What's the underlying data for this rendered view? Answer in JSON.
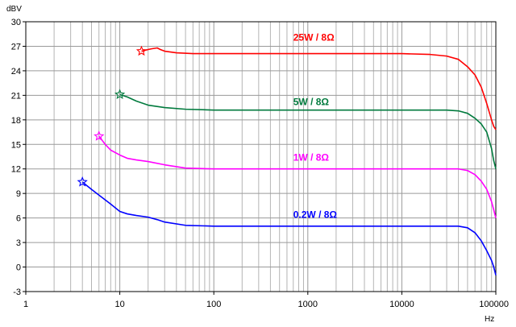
{
  "chart_data": {
    "type": "line",
    "ylabel": "dBV",
    "xlabel": "Hz",
    "x_scale": "log",
    "xlim": [
      1,
      100000
    ],
    "ylim": [
      -3,
      30
    ],
    "grid": true,
    "x_ticks": [
      "1",
      "10",
      "100",
      "1000",
      "10000",
      "100000"
    ],
    "y_ticks": [
      "-3",
      "0",
      "3",
      "6",
      "9",
      "12",
      "15",
      "18",
      "21",
      "24",
      "27",
      "30"
    ],
    "series": [
      {
        "name": "25W / 8Ω",
        "color": "#ff0000",
        "start_marker": "star",
        "points": [
          [
            17,
            26.4
          ],
          [
            20,
            26.6
          ],
          [
            22,
            26.7
          ],
          [
            25,
            26.8
          ],
          [
            27,
            26.6
          ],
          [
            30,
            26.4
          ],
          [
            40,
            26.2
          ],
          [
            60,
            26.1
          ],
          [
            100,
            26.1
          ],
          [
            1000,
            26.1
          ],
          [
            10000,
            26.1
          ],
          [
            20000,
            26.0
          ],
          [
            30000,
            25.8
          ],
          [
            40000,
            25.4
          ],
          [
            50000,
            24.5
          ],
          [
            60000,
            23.5
          ],
          [
            70000,
            22.0
          ],
          [
            80000,
            20.0
          ],
          [
            90000,
            18.0
          ],
          [
            95000,
            17.2
          ],
          [
            100000,
            16.8
          ]
        ]
      },
      {
        "name": "5W / 8Ω",
        "color": "#007a3d",
        "start_marker": "star",
        "points": [
          [
            10,
            21.1
          ],
          [
            12,
            20.8
          ],
          [
            15,
            20.3
          ],
          [
            20,
            19.8
          ],
          [
            30,
            19.5
          ],
          [
            50,
            19.3
          ],
          [
            100,
            19.2
          ],
          [
            1000,
            19.2
          ],
          [
            10000,
            19.2
          ],
          [
            30000,
            19.2
          ],
          [
            40000,
            19.1
          ],
          [
            50000,
            18.8
          ],
          [
            60000,
            18.2
          ],
          [
            70000,
            17.5
          ],
          [
            80000,
            16.5
          ],
          [
            90000,
            14.5
          ],
          [
            95000,
            13.0
          ],
          [
            100000,
            12.0
          ]
        ]
      },
      {
        "name": "1W / 8Ω",
        "color": "#ff00ff",
        "start_marker": "star",
        "points": [
          [
            6,
            16.0
          ],
          [
            7,
            15.0
          ],
          [
            8,
            14.3
          ],
          [
            10,
            13.7
          ],
          [
            12,
            13.3
          ],
          [
            15,
            13.1
          ],
          [
            20,
            12.9
          ],
          [
            30,
            12.5
          ],
          [
            50,
            12.1
          ],
          [
            100,
            12.0
          ],
          [
            1000,
            12.0
          ],
          [
            10000,
            12.0
          ],
          [
            40000,
            12.0
          ],
          [
            50000,
            11.8
          ],
          [
            60000,
            11.3
          ],
          [
            70000,
            10.5
          ],
          [
            80000,
            9.5
          ],
          [
            90000,
            8.0
          ],
          [
            95000,
            7.0
          ],
          [
            100000,
            6.0
          ]
        ]
      },
      {
        "name": "0.2W / 8Ω",
        "color": "#0000ff",
        "start_marker": "star",
        "points": [
          [
            4,
            10.4
          ],
          [
            5,
            9.5
          ],
          [
            6,
            8.8
          ],
          [
            8,
            7.7
          ],
          [
            10,
            6.8
          ],
          [
            12,
            6.5
          ],
          [
            15,
            6.3
          ],
          [
            20,
            6.1
          ],
          [
            25,
            5.8
          ],
          [
            30,
            5.5
          ],
          [
            50,
            5.1
          ],
          [
            100,
            5.0
          ],
          [
            1000,
            5.0
          ],
          [
            10000,
            5.0
          ],
          [
            40000,
            5.0
          ],
          [
            50000,
            4.8
          ],
          [
            60000,
            4.2
          ],
          [
            70000,
            3.2
          ],
          [
            80000,
            2.0
          ],
          [
            90000,
            0.8
          ],
          [
            95000,
            0.0
          ],
          [
            100000,
            -1.0
          ]
        ]
      }
    ],
    "annotations": [
      {
        "text": "25W / 8Ω",
        "x": 700,
        "y": 27.7,
        "color": "#ff0000"
      },
      {
        "text": "5W / 8Ω",
        "x": 700,
        "y": 19.8,
        "color": "#007a3d"
      },
      {
        "text": "1W / 8Ω",
        "x": 700,
        "y": 13.0,
        "color": "#ff00ff"
      },
      {
        "text": "0.2W / 8Ω",
        "x": 700,
        "y": 6.0,
        "color": "#0000ff"
      }
    ]
  }
}
